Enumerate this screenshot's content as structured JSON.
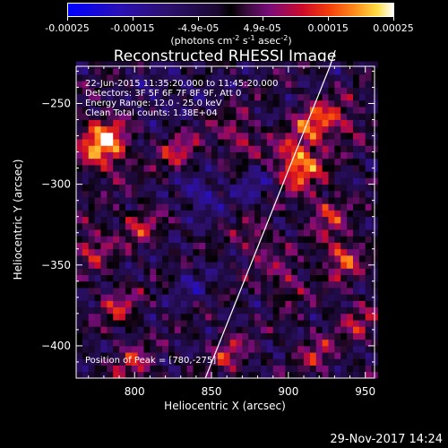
{
  "colorbar": {
    "ticks": [
      {
        "value": -0.00025,
        "label": "-0.00025"
      },
      {
        "value": -0.00015,
        "label": "-0.00015"
      },
      {
        "value": -4.9e-05,
        "label": "-4.9e-05"
      },
      {
        "value": 4.9e-05,
        "label": "4.9e-05"
      },
      {
        "value": 0.00015,
        "label": "0.00015"
      },
      {
        "value": 0.00025,
        "label": "0.00025"
      }
    ],
    "range": [
      -0.00025,
      0.00025
    ],
    "unit_text": "(photons cm",
    "unit_exp1": "-2",
    "unit_mid1": " s",
    "unit_exp2": "-1",
    "unit_mid2": " asec",
    "unit_exp3": "-2",
    "unit_close": ")"
  },
  "chart_data": {
    "type": "heatmap",
    "title": "Reconstructed RHESSI Image",
    "xlabel": "Heliocentric X (arcsec)",
    "ylabel": "Heliocentric Y (arcsec)",
    "xlim": [
      762,
      956
    ],
    "ylim": [
      -420,
      -227
    ],
    "xticks": [
      800,
      850,
      900,
      950
    ],
    "yticks": [
      -400,
      -350,
      -300,
      -250
    ],
    "annotations": [
      "22-Jun-2015 11:35:20.000 to 11:45:20.000",
      "Detectors: 3F 5F 6F 7F 8F 9F, Att 0",
      "Energy Range: 12.0 - 25.0 keV",
      "Clean     Total counts: 1.38E+04"
    ],
    "peak_label": "Position of Peak = [780,-275]",
    "peak_position": [
      780,
      -275
    ],
    "limb_line": [
      [
        846,
        -420
      ],
      [
        927,
        -227
      ]
    ],
    "hot_spots": [
      {
        "x": 780,
        "y": -275,
        "value": 0.00025
      },
      {
        "x": 906,
        "y": -287,
        "value": 0.00022
      },
      {
        "x": 917,
        "y": -262,
        "value": 0.00016
      },
      {
        "x": 935,
        "y": -345,
        "value": 0.00016
      },
      {
        "x": 867,
        "y": -270,
        "value": 0.00012
      },
      {
        "x": 935,
        "y": -260,
        "value": 0.0001
      },
      {
        "x": 829,
        "y": -280,
        "value": 0.00012
      },
      {
        "x": 804,
        "y": -325,
        "value": 0.00011
      },
      {
        "x": 773,
        "y": -338,
        "value": 0.00012
      },
      {
        "x": 790,
        "y": -375,
        "value": 0.00011
      },
      {
        "x": 880,
        "y": -335,
        "value": 0.0001
      },
      {
        "x": 800,
        "y": -412,
        "value": 0.00012
      },
      {
        "x": 862,
        "y": -405,
        "value": 0.00011
      },
      {
        "x": 918,
        "y": -405,
        "value": 0.0001
      },
      {
        "x": 945,
        "y": -385,
        "value": 0.0001
      },
      {
        "x": 898,
        "y": -360,
        "value": 0.0001
      },
      {
        "x": 925,
        "y": -318,
        "value": 0.00012
      }
    ],
    "cold_regions": [
      {
        "x": 842,
        "y": -305,
        "value": -0.00012
      },
      {
        "x": 878,
        "y": -300,
        "value": -8e-05
      },
      {
        "x": 814,
        "y": -250,
        "value": -6e-05
      },
      {
        "x": 837,
        "y": -362,
        "value": -6e-05
      },
      {
        "x": 835,
        "y": -235,
        "value": -5e-05
      }
    ]
  },
  "footer": {
    "date": "29-Nov-2017 14:24"
  }
}
